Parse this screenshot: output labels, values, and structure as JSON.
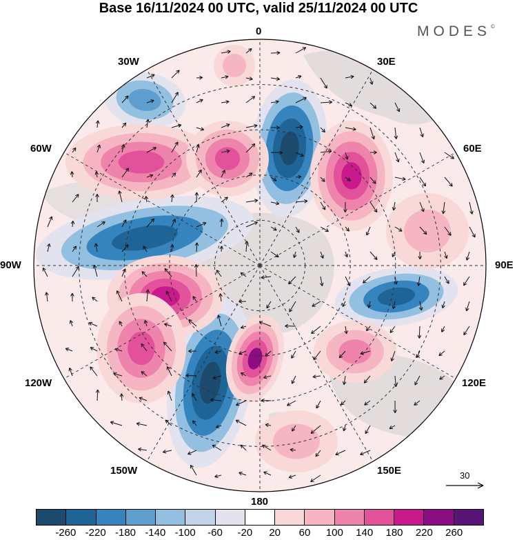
{
  "title": "Base 16/11/2024 00 UTC, valid 25/11/2024 00 UTC",
  "brand": "MODES",
  "brand_mark": "©",
  "longitude_labels": {
    "lon_0": "0",
    "lon_30e": "30E",
    "lon_60e": "60E",
    "lon_90e": "90E",
    "lon_120e": "120E",
    "lon_150e": "150E",
    "lon_180": "180",
    "lon_150w": "150W",
    "lon_120w": "120W",
    "lon_90w": "90W",
    "lon_60w": "60W",
    "lon_30w": "30W"
  },
  "reference_vector": "30",
  "colorbar": {
    "colors": [
      "#1d4b6e",
      "#1f6496",
      "#3584bd",
      "#5e9fcf",
      "#93bfe0",
      "#c3d3e8",
      "#e3e2ef",
      "#ffffff",
      "#f9d8d8",
      "#f6b5c3",
      "#ee83ac",
      "#e2529a",
      "#c81a8c",
      "#8e0c83",
      "#591477"
    ],
    "ticks": [
      "-260",
      "-220",
      "-180",
      "-140",
      "-100",
      "-60",
      "-20",
      "20",
      "60",
      "100",
      "140",
      "180",
      "220",
      "260"
    ]
  }
}
